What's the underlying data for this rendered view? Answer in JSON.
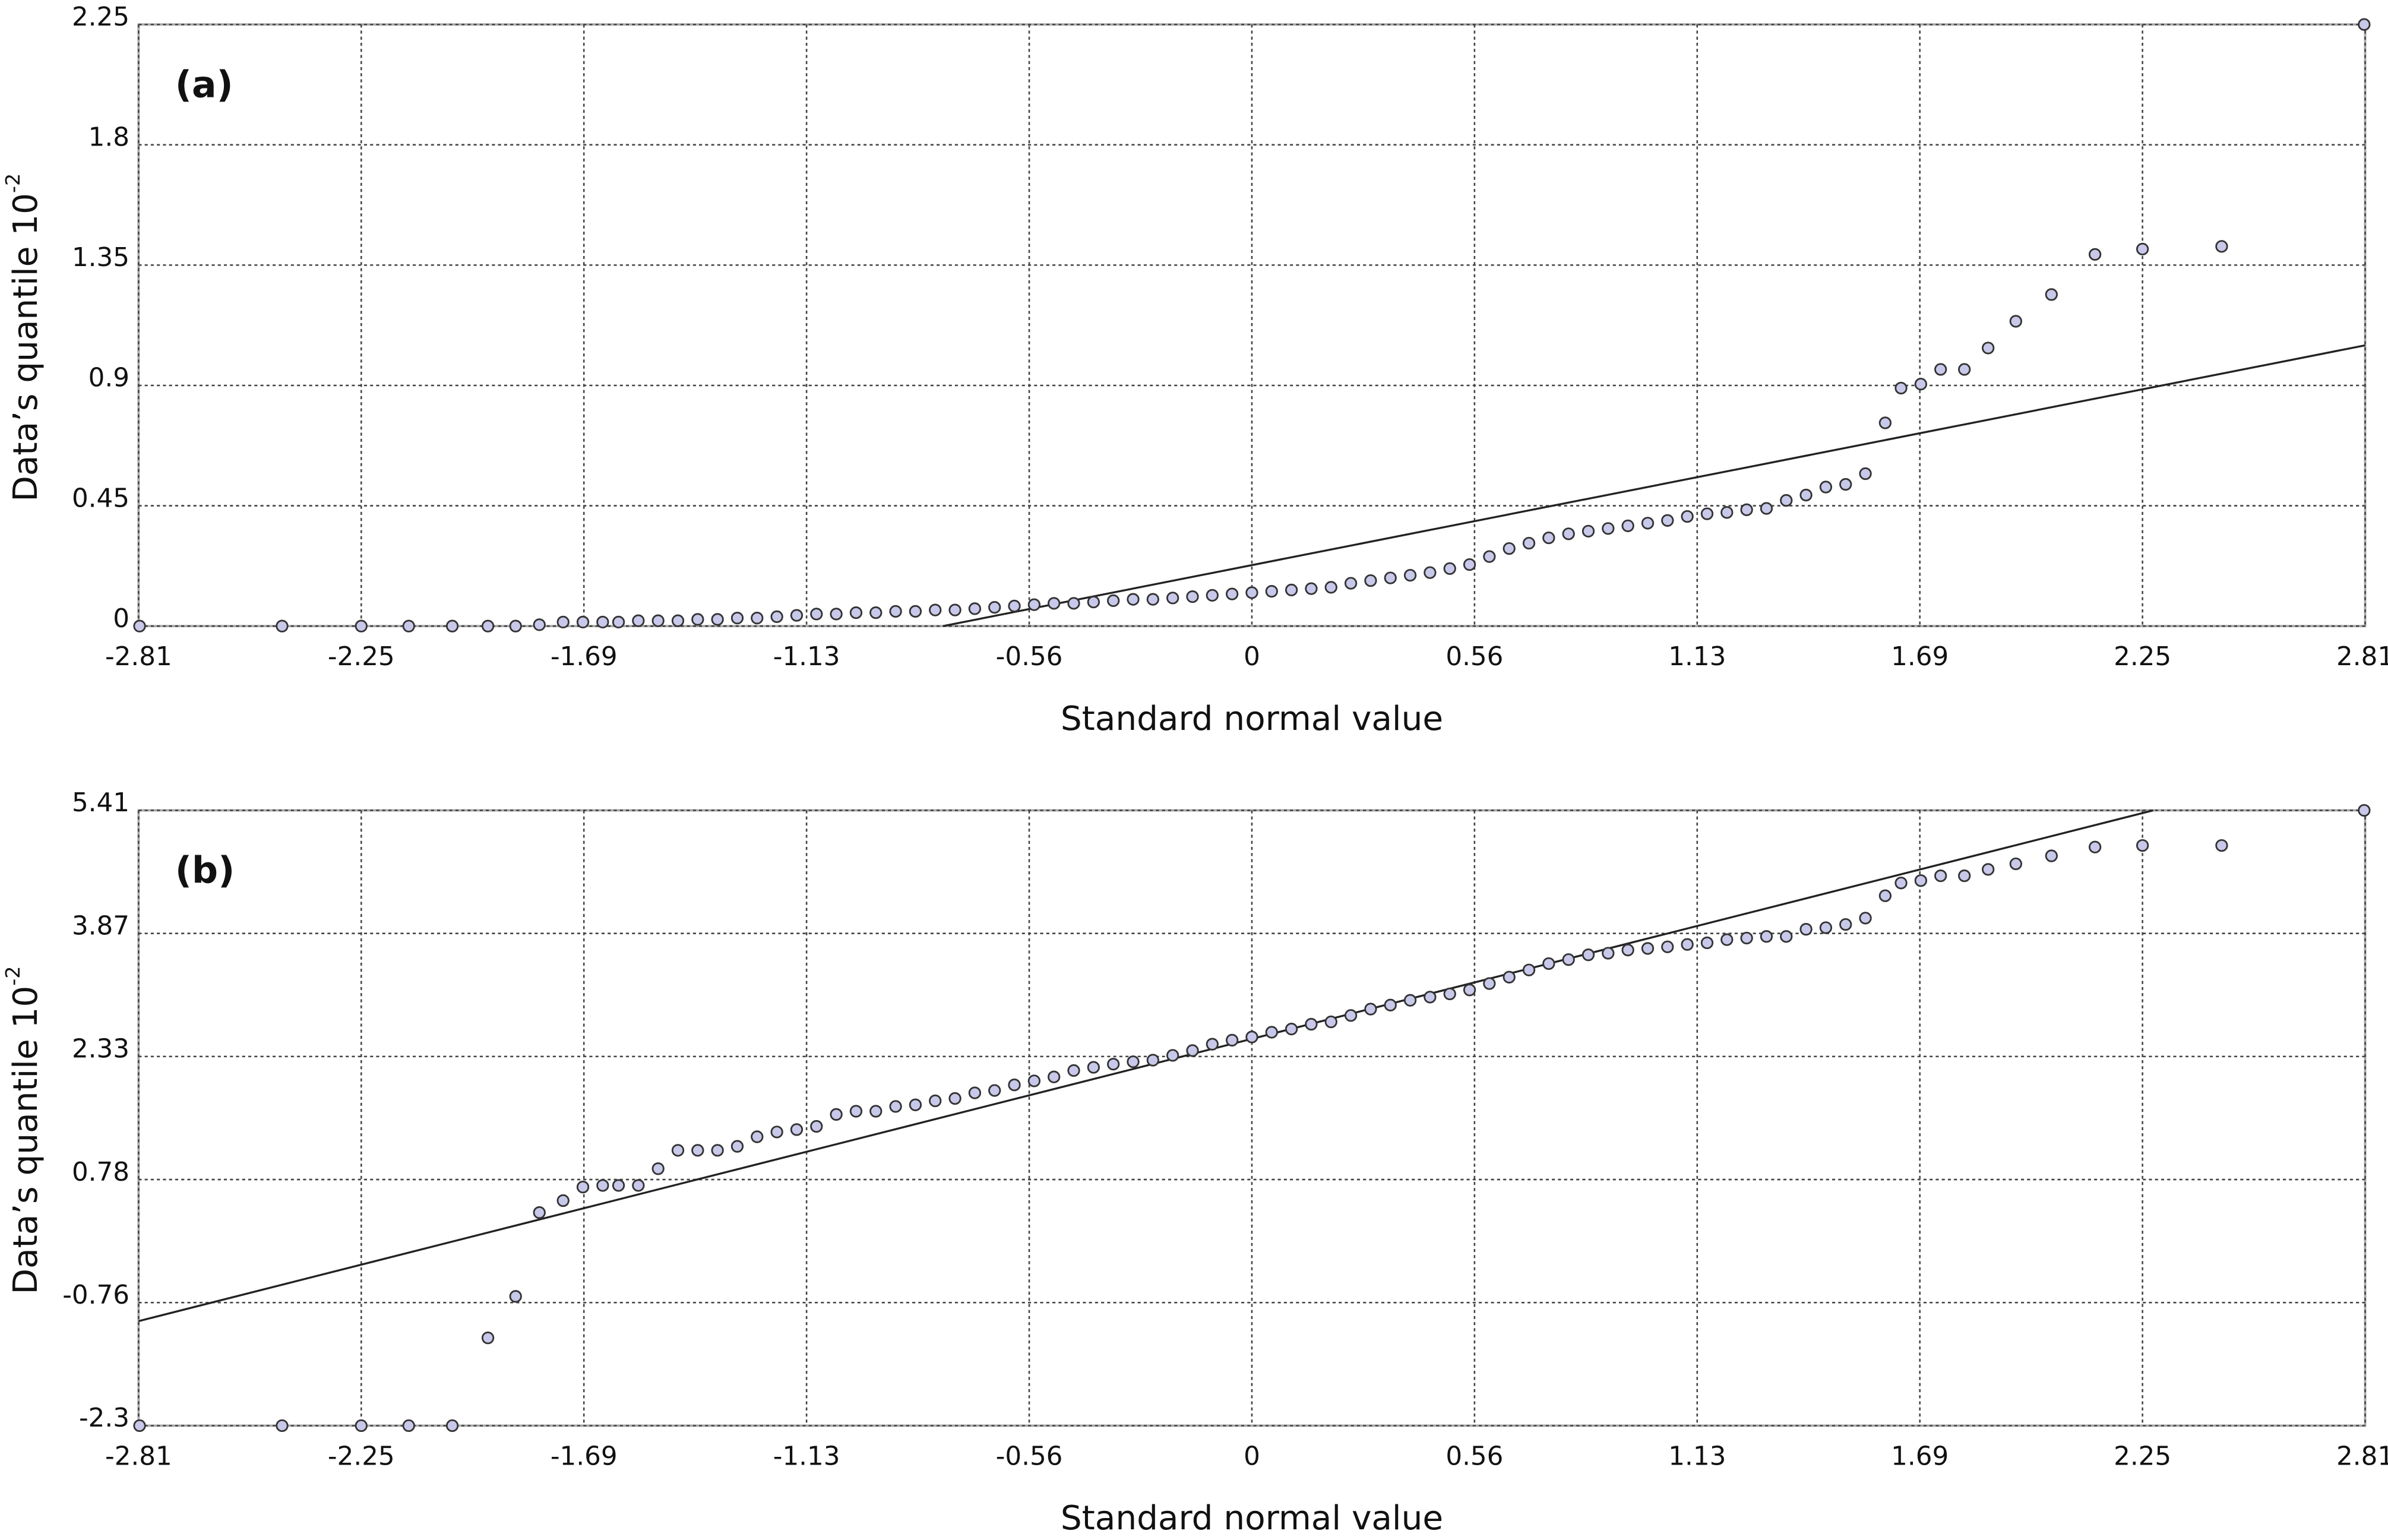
{
  "chart_data": [
    {
      "type": "scatter",
      "label": "(a)",
      "xlabel": "Standard normal value",
      "ylabel": "Data’s quantile 10",
      "ylabel_superscript": "-2",
      "xlim": [
        -2.8125,
        2.8125
      ],
      "xticks": [
        {
          "value": -2.8125,
          "label": "-2.81"
        },
        -2.25,
        {
          "value": -1.6875,
          "label": "-1.69"
        },
        {
          "value": -1.125,
          "label": "-1.13"
        },
        {
          "value": -0.5625,
          "label": "-0.56"
        },
        0,
        {
          "value": 0.5625,
          "label": "0.56"
        },
        {
          "value": 1.125,
          "label": "1.13"
        },
        {
          "value": 1.6875,
          "label": "1.69"
        },
        2.25,
        {
          "value": 2.8125,
          "label": "2.81"
        }
      ],
      "ylim": [
        0,
        2.25
      ],
      "yticks": [
        0,
        0.45,
        0.9,
        1.35,
        1.8,
        2.25
      ],
      "grid": true,
      "x": [
        -2.81,
        -2.45,
        -2.25,
        -2.13,
        -2.02,
        -1.93,
        -1.86,
        -1.8,
        -1.74,
        -1.69,
        -1.64,
        -1.6,
        -1.55,
        -1.5,
        -1.45,
        -1.4,
        -1.35,
        -1.3,
        -1.25,
        -1.2,
        -1.15,
        -1.1,
        -1.05,
        -1,
        -0.95,
        -0.9,
        -0.85,
        -0.8,
        -0.75,
        -0.7,
        -0.65,
        -0.6,
        -0.55,
        -0.5,
        -0.45,
        -0.4,
        -0.35,
        -0.3,
        -0.25,
        -0.2,
        -0.15,
        -0.1,
        -0.05,
        0,
        0.05,
        0.1,
        0.15,
        0.2,
        0.25,
        0.3,
        0.35,
        0.4,
        0.45,
        0.5,
        0.55,
        0.6,
        0.65,
        0.7,
        0.75,
        0.8,
        0.85,
        0.9,
        0.95,
        1,
        1.05,
        1.1,
        1.15,
        1.2,
        1.25,
        1.3,
        1.35,
        1.4,
        1.45,
        1.5,
        1.55,
        1.6,
        1.64,
        1.69,
        1.74,
        1.8,
        1.86,
        1.93,
        2.02,
        2.13,
        2.25,
        2.45,
        2.81
      ],
      "series": [
        {
          "color": "#c8c8ea",
          "values": [
            0,
            0,
            0,
            0,
            0,
            0,
            0,
            0.005,
            0.015,
            0.015,
            0.015,
            0.015,
            0.02,
            0.02,
            0.02,
            0.025,
            0.025,
            0.03,
            0.03,
            0.035,
            0.04,
            0.045,
            0.045,
            0.05,
            0.05,
            0.055,
            0.055,
            0.06,
            0.06,
            0.065,
            0.07,
            0.075,
            0.08,
            0.085,
            0.085,
            0.09,
            0.095,
            0.1,
            0.1,
            0.105,
            0.11,
            0.115,
            0.12,
            0.125,
            0.13,
            0.135,
            0.14,
            0.145,
            0.16,
            0.17,
            0.18,
            0.19,
            0.2,
            0.215,
            0.23,
            0.26,
            0.29,
            0.31,
            0.33,
            0.345,
            0.355,
            0.365,
            0.375,
            0.385,
            0.395,
            0.41,
            0.42,
            0.425,
            0.435,
            0.44,
            0.47,
            0.49,
            0.52,
            0.53,
            0.57,
            0.76,
            0.89,
            0.905,
            0.96,
            0.96,
            1.04,
            1.14,
            1.24,
            1.39,
            1.41,
            1.42,
            2.25
          ]
        }
      ],
      "fit_line": {
        "color": "#222222",
        "x": [
          -0.78,
          2.8125
        ],
        "values": [
          0,
          1.05
        ]
      }
    },
    {
      "type": "scatter",
      "label": "(b)",
      "xlabel": "Standard normal value",
      "ylabel": "Data’s quantile 10",
      "ylabel_superscript": "-2",
      "xlim": [
        -2.8125,
        2.8125
      ],
      "xticks": [
        {
          "value": -2.8125,
          "label": "-2.81"
        },
        -2.25,
        {
          "value": -1.6875,
          "label": "-1.69"
        },
        {
          "value": -1.125,
          "label": "-1.13"
        },
        {
          "value": -0.5625,
          "label": "-0.56"
        },
        0,
        {
          "value": 0.5625,
          "label": "0.56"
        },
        {
          "value": 1.125,
          "label": "1.13"
        },
        {
          "value": 1.6875,
          "label": "1.69"
        },
        2.25,
        {
          "value": 2.8125,
          "label": "2.81"
        }
      ],
      "ylim": [
        -2.3,
        5.41
      ],
      "yticks": [
        -2.3,
        {
          "value": -0.758,
          "label": "-0.76"
        },
        {
          "value": 0.784,
          "label": "0.78"
        },
        {
          "value": 2.326,
          "label": "2.33"
        },
        {
          "value": 3.868,
          "label": "3.87"
        },
        5.41
      ],
      "grid": true,
      "x": [
        -2.81,
        -2.45,
        -2.25,
        -2.13,
        -2.02,
        -1.93,
        -1.86,
        -1.8,
        -1.74,
        -1.69,
        -1.64,
        -1.6,
        -1.55,
        -1.5,
        -1.45,
        -1.4,
        -1.35,
        -1.3,
        -1.25,
        -1.2,
        -1.15,
        -1.1,
        -1.05,
        -1,
        -0.95,
        -0.9,
        -0.85,
        -0.8,
        -0.75,
        -0.7,
        -0.65,
        -0.6,
        -0.55,
        -0.5,
        -0.45,
        -0.4,
        -0.35,
        -0.3,
        -0.25,
        -0.2,
        -0.15,
        -0.1,
        -0.05,
        0,
        0.05,
        0.1,
        0.15,
        0.2,
        0.25,
        0.3,
        0.35,
        0.4,
        0.45,
        0.5,
        0.55,
        0.6,
        0.65,
        0.7,
        0.75,
        0.8,
        0.85,
        0.9,
        0.95,
        1,
        1.05,
        1.1,
        1.15,
        1.2,
        1.25,
        1.3,
        1.35,
        1.4,
        1.45,
        1.5,
        1.55,
        1.6,
        1.64,
        1.69,
        1.74,
        1.8,
        1.86,
        1.93,
        2.02,
        2.13,
        2.25,
        2.45,
        2.81
      ],
      "series": [
        {
          "color": "#c8c8ea",
          "values": [
            -2.3,
            -2.3,
            -2.3,
            -2.3,
            -2.3,
            -1.2,
            -0.68,
            0.37,
            0.52,
            0.69,
            0.71,
            0.71,
            0.71,
            0.92,
            1.15,
            1.15,
            1.15,
            1.2,
            1.32,
            1.38,
            1.41,
            1.45,
            1.6,
            1.64,
            1.64,
            1.7,
            1.72,
            1.77,
            1.8,
            1.87,
            1.9,
            1.97,
            2.02,
            2.07,
            2.15,
            2.19,
            2.23,
            2.26,
            2.28,
            2.34,
            2.4,
            2.48,
            2.53,
            2.57,
            2.63,
            2.67,
            2.73,
            2.76,
            2.84,
            2.92,
            2.97,
            3.03,
            3.07,
            3.11,
            3.16,
            3.24,
            3.32,
            3.41,
            3.49,
            3.54,
            3.6,
            3.62,
            3.66,
            3.68,
            3.7,
            3.73,
            3.75,
            3.79,
            3.81,
            3.83,
            3.83,
            3.92,
            3.94,
            3.98,
            4.06,
            4.34,
            4.5,
            4.53,
            4.59,
            4.59,
            4.67,
            4.74,
            4.84,
            4.95,
            4.97,
            4.97,
            5.41
          ]
        }
      ],
      "fit_line": {
        "color": "#222222",
        "x": [
          -2.8125,
          2.277
        ],
        "values": [
          -0.99,
          5.41
        ]
      }
    }
  ]
}
